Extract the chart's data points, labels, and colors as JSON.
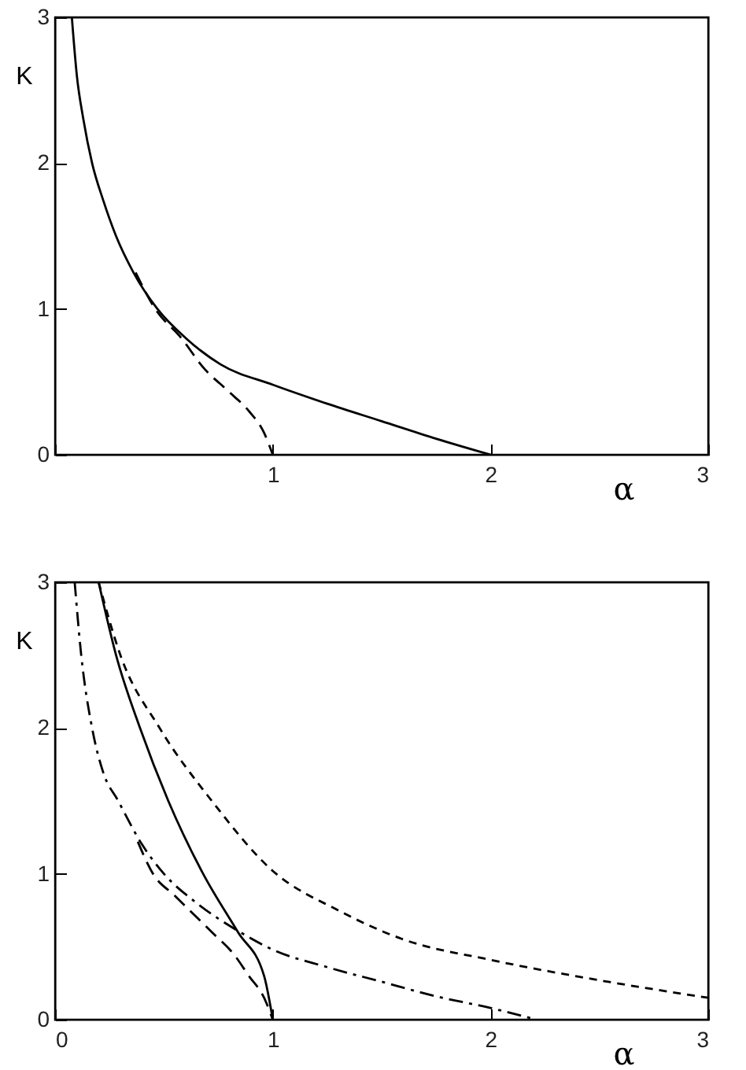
{
  "chart_data": [
    {
      "type": "line",
      "xlabel": "α",
      "ylabel": "K",
      "xlim": [
        0,
        3
      ],
      "ylim": [
        0,
        3
      ],
      "xticks": [
        {
          "value": 0,
          "label": null
        },
        1,
        2,
        3
      ],
      "yticks": [
        0,
        1,
        2,
        3
      ],
      "grid": false,
      "series": [
        {
          "color": "#000000",
          "line_style": "solid",
          "x": [
            0.077,
            0.1,
            0.13,
            0.17,
            0.22,
            0.28,
            0.36,
            0.47,
            0.6,
            0.76,
            1,
            1.25,
            1.5,
            1.75,
            2
          ],
          "values": [
            3,
            2.6,
            2.3,
            2,
            1.75,
            1.5,
            1.25,
            1,
            0.8,
            0.62,
            0.48,
            0.35,
            0.23,
            0.11,
            0
          ]
        },
        {
          "color": "#000000",
          "line_style": "dashed",
          "x": [
            0.37,
            0.46,
            0.58,
            0.68,
            0.8,
            0.89,
            0.96,
            1
          ],
          "values": [
            1.25,
            1,
            0.8,
            0.6,
            0.43,
            0.3,
            0.15,
            0
          ]
        }
      ]
    },
    {
      "type": "line",
      "xlabel": "α",
      "ylabel": "K",
      "xlim": [
        0,
        3
      ],
      "ylim": [
        0,
        3
      ],
      "xticks": [
        0,
        1,
        2,
        3
      ],
      "yticks": [
        0,
        1,
        2,
        3
      ],
      "grid": false,
      "series": [
        {
          "color": "#000000",
          "line_style": "solid",
          "x": [
            0.2,
            0.28,
            0.39,
            0.52,
            0.68,
            0.84,
            0.96,
            1
          ],
          "values": [
            3,
            2.5,
            2,
            1.5,
            1,
            0.6,
            0.3,
            0
          ]
        },
        {
          "color": "#000000",
          "line_style": "dashdot",
          "x": [
            0.09,
            0.12,
            0.17,
            0.22,
            0.29,
            0.4,
            0.5,
            0.65,
            0.85,
            1,
            1.25,
            1.5,
            1.75,
            2,
            2.21
          ],
          "values": [
            3,
            2.5,
            2,
            1.7,
            1.5,
            1.2,
            1,
            0.8,
            0.6,
            0.48,
            0.36,
            0.26,
            0.16,
            0.08,
            0
          ]
        },
        {
          "color": "#000000",
          "line_style": "dashed",
          "x": [
            0.38,
            0.45,
            0.55,
            0.72,
            0.82,
            0.89,
            0.96,
            1
          ],
          "values": [
            1.22,
            1,
            0.85,
            0.6,
            0.45,
            0.3,
            0.15,
            0
          ]
        },
        {
          "color": "#000000",
          "line_style": "shortdash",
          "x": [
            0.2,
            0.3,
            0.48,
            0.72,
            1,
            1.3,
            1.6,
            2,
            2.5,
            3
          ],
          "values": [
            3,
            2.5,
            2,
            1.5,
            1.02,
            0.75,
            0.55,
            0.41,
            0.27,
            0.15
          ]
        }
      ]
    }
  ]
}
